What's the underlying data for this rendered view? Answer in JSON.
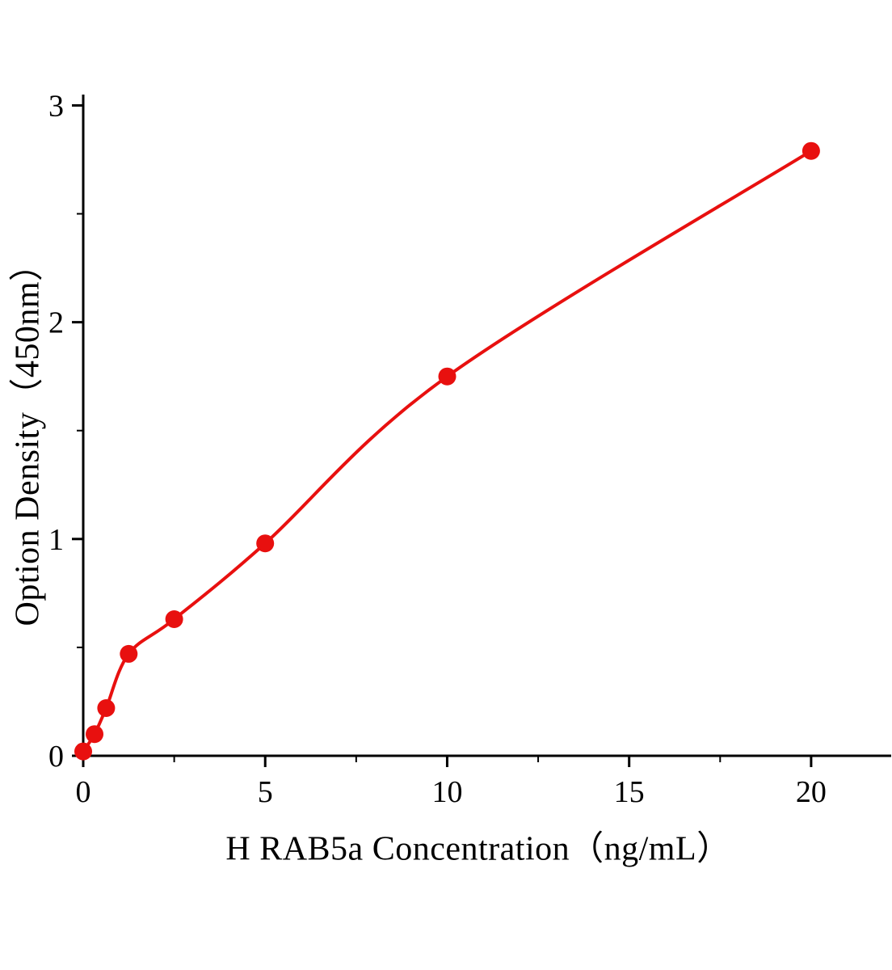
{
  "chart_data": {
    "type": "scatter",
    "title": "",
    "xlabel": "H RAB5a Concentration（ng/mL）",
    "ylabel": "Option Density（450nm）",
    "x": [
      0,
      0.31,
      0.63,
      1.25,
      2.5,
      5,
      10,
      20
    ],
    "y": [
      0.02,
      0.1,
      0.22,
      0.47,
      0.63,
      0.98,
      1.75,
      2.79
    ],
    "x_ticks": [
      0,
      5,
      10,
      15,
      20
    ],
    "y_ticks": [
      0,
      1,
      2,
      3
    ],
    "x_minor_ticks": [
      2.5,
      7.5,
      12.5,
      17.5
    ],
    "y_minor_ticks": [
      0.5,
      1.5,
      2.5
    ],
    "xlim": [
      0,
      22.2
    ],
    "ylim": [
      0,
      3.05
    ],
    "grid": false,
    "legend": "none",
    "series_color": "#e8100f",
    "axis_color": "#000000",
    "curve_type": "smooth fit line through points"
  }
}
